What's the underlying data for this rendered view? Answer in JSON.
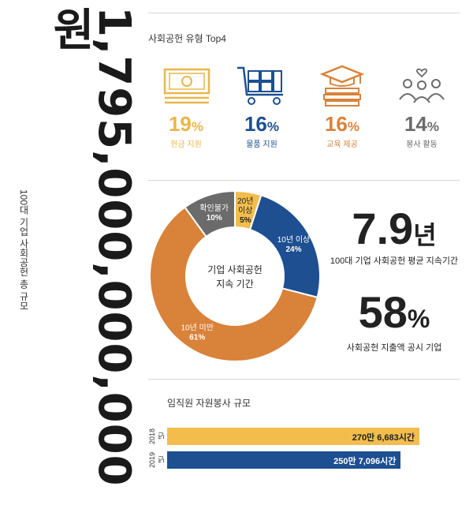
{
  "total": {
    "amount": "1,795,000,000,000원",
    "label": "100대 기업 사회공헌 총 규모"
  },
  "types_section": {
    "title": "사회공헌 유형 Top4",
    "items": [
      {
        "icon": "money-icon",
        "pct": "19",
        "pct_sign": "%",
        "label": "현금 지원",
        "color": "#e9b64a"
      },
      {
        "icon": "cart-icon",
        "pct": "16",
        "pct_sign": "%",
        "label": "물품 지원",
        "color": "#1d4f91"
      },
      {
        "icon": "graduation-icon",
        "pct": "16",
        "pct_sign": "%",
        "label": "교육 제공",
        "color": "#d9823a"
      },
      {
        "icon": "people-heart-icon",
        "pct": "14",
        "pct_sign": "%",
        "label": "봉사 활동",
        "color": "#6b6b6b"
      }
    ]
  },
  "chart_data": [
    {
      "type": "pie",
      "title": "",
      "center_label": [
        "기업 사회공헌",
        "지속 기간"
      ],
      "slices": [
        {
          "label": "20년 이상",
          "value": 5,
          "color": "#f2bd4c"
        },
        {
          "label": "10년 이상",
          "value": 24,
          "color": "#1d4f91"
        },
        {
          "label": "10년 미만",
          "value": 61,
          "color": "#d9823a"
        },
        {
          "label": "확인불가",
          "value": 10,
          "color": "#6b6b6b"
        }
      ]
    },
    {
      "type": "bar",
      "title": "임직원 자원봉사 규모",
      "categories": [
        "2018년",
        "2019년"
      ],
      "values": [
        2706683,
        2507096
      ],
      "value_labels": [
        "270만 6,683시간",
        "250만 7,096시간"
      ],
      "colors": [
        "#f2bd4c",
        "#1d4f91"
      ]
    }
  ],
  "stats": {
    "duration_value": "7.9",
    "duration_unit": "년",
    "duration_label": "100대 기업 사회공헌 평균 지속기간",
    "disclosure_value": "58",
    "disclosure_unit": "%",
    "disclosure_label": "사회공헌 지출액 공시 기업"
  }
}
